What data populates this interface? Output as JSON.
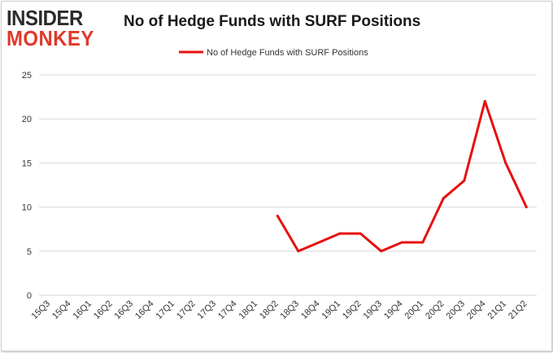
{
  "logo": {
    "top": "INSIDER",
    "bottom": "MONKEY"
  },
  "chart_data": {
    "type": "line",
    "title": "No of Hedge Funds with SURF Positions",
    "xlabel": "",
    "ylabel": "",
    "categories": [
      "15Q3",
      "15Q4",
      "16Q1",
      "16Q2",
      "16Q3",
      "16Q4",
      "17Q1",
      "17Q2",
      "17Q3",
      "17Q4",
      "18Q1",
      "18Q2",
      "18Q3",
      "18Q4",
      "19Q1",
      "19Q2",
      "19Q3",
      "19Q4",
      "20Q1",
      "20Q2",
      "20Q3",
      "20Q4",
      "21Q1",
      "21Q2"
    ],
    "series": [
      {
        "name": "No of Hedge Funds with SURF Positions",
        "color": "#e81010",
        "values": [
          null,
          null,
          null,
          null,
          null,
          null,
          null,
          null,
          null,
          null,
          null,
          9,
          5,
          6,
          7,
          7,
          5,
          6,
          6,
          11,
          13,
          22,
          15,
          10
        ]
      }
    ],
    "ylim": [
      0,
      25
    ],
    "yticks": [
      0,
      5,
      10,
      15,
      20,
      25
    ],
    "grid": true,
    "legend": "top-center"
  }
}
